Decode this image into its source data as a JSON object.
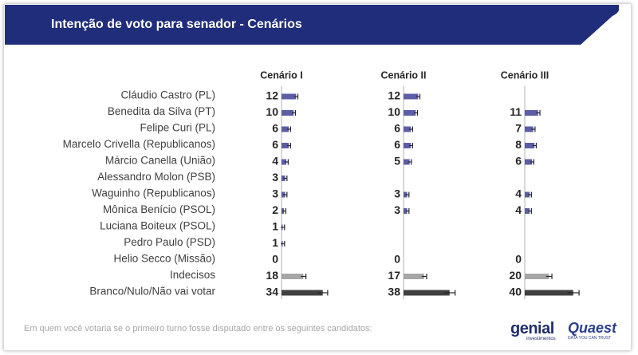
{
  "header": {
    "title": "Intenção de voto para senador - Cenários",
    "band_color": "#1f2d7a"
  },
  "footnote": "Em quem você votaria se o primeiro turno fosse disputado entre os seguintes candidatos:",
  "logos": {
    "genial_name": "genial",
    "genial_sub": "investimentos",
    "quaest_name": "Quaest",
    "quaest_sub": "DATA YOU CAN TRUST"
  },
  "chart_data": {
    "type": "bar",
    "orientation": "horizontal",
    "error_bars": true,
    "grid": false,
    "categories": [
      "Cláudio Castro (PL)",
      "Benedita da Silva (PT)",
      "Felipe Curi (PL)",
      "Marcelo Crivella (Republicanos)",
      "Márcio Canella (União)",
      "Alessandro Molon (PSB)",
      "Waguinho (Republicanos)",
      "Mônica Benício (PSOL)",
      "Luciana Boiteux (PSOL)",
      "Pedro Paulo (PSD)",
      "Helio Secco (Missão)",
      "Indecisos",
      "Branco/Nulo/Não vai votar"
    ],
    "series": [
      {
        "name": "Cenário I",
        "values": [
          12,
          10,
          6,
          6,
          4,
          3,
          3,
          2,
          1,
          1,
          0,
          18,
          34
        ]
      },
      {
        "name": "Cenário II",
        "values": [
          12,
          10,
          6,
          6,
          5,
          null,
          3,
          3,
          null,
          null,
          0,
          17,
          38
        ]
      },
      {
        "name": "Cenário III",
        "values": [
          null,
          11,
          7,
          8,
          6,
          null,
          4,
          4,
          null,
          null,
          0,
          20,
          40
        ]
      }
    ],
    "colors": {
      "candidate": "#5b5ea6",
      "undecided": "#a6a6a6",
      "blank": "#404040",
      "axis": "#bfbfbf",
      "error_bar": "#262626"
    }
  }
}
